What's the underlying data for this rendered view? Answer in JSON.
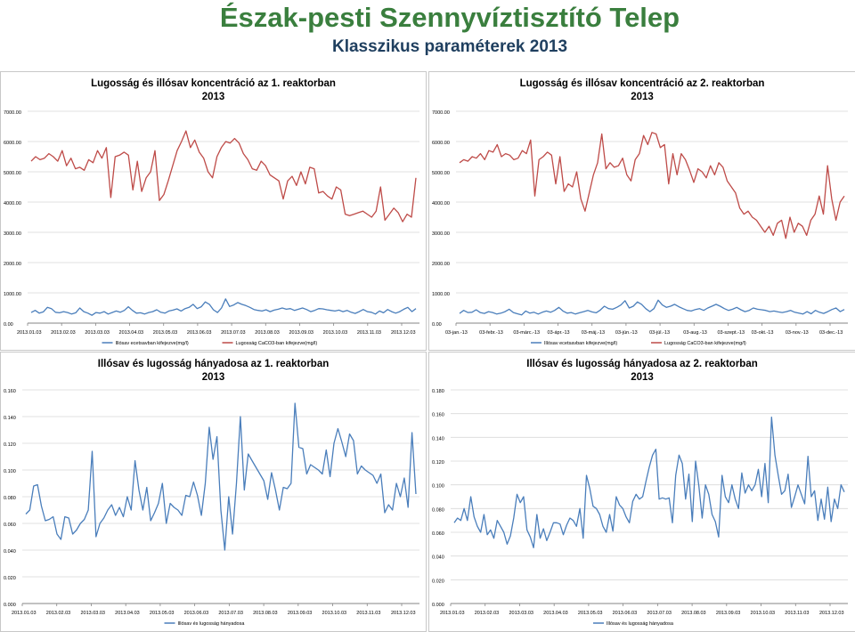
{
  "page": {
    "title": "Észak-pesti Szennyvíztisztító Telep",
    "subtitle": "Klasszikus paraméterek 2013"
  },
  "colors": {
    "acid": "#4a7ebb",
    "alk": "#be4b48",
    "ratio": "#4a7ebb",
    "grid": "#d9d9d9",
    "axis": "#868686"
  },
  "chart_data": [
    {
      "type": "line",
      "title": "Lugosság és illósav koncentráció az 1. reaktorban",
      "subtitle": "2013",
      "ylim": [
        0,
        7000
      ],
      "yticks": [
        "0.00",
        "1000.00",
        "2000.00",
        "3000.00",
        "4000.00",
        "5000.00",
        "6000.00",
        "7000.00"
      ],
      "xticks": [
        "2013.01.03",
        "2013.02.03",
        "2013.03.03",
        "2013.04.03",
        "2013.05.03",
        "2013.06.03",
        "2013.07.03",
        "2013.08.03",
        "2013.09.03",
        "2013.10.03",
        "2013.11.03",
        "2013.12.03"
      ],
      "x": {
        "start": 0,
        "end": 360
      },
      "grid": true,
      "legend_position": "bottom",
      "series": [
        {
          "name": "Illósav ecetsavban kifejezve(mg/l)",
          "color": "acid",
          "values": [
            350,
            420,
            330,
            370,
            520,
            480,
            360,
            340,
            380,
            350,
            300,
            340,
            500,
            380,
            330,
            260,
            350,
            330,
            380,
            300,
            350,
            400,
            360,
            420,
            540,
            420,
            330,
            340,
            300,
            350,
            380,
            440,
            360,
            330,
            400,
            430,
            470,
            400,
            480,
            520,
            620,
            480,
            540,
            700,
            620,
            440,
            350,
            500,
            800,
            550,
            600,
            680,
            620,
            580,
            520,
            450,
            420,
            400,
            440,
            380,
            430,
            460,
            500,
            460,
            480,
            420,
            460,
            500,
            450,
            380,
            420,
            480,
            470,
            440,
            420,
            400,
            430,
            380,
            420,
            360,
            320,
            380,
            450,
            380,
            360,
            300,
            400,
            340,
            450,
            380,
            330,
            380,
            460,
            520,
            380,
            480
          ]
        },
        {
          "name": "Lugosság CaCO3-ban kifejezve(mg/l)",
          "color": "alk",
          "values": [
            5350,
            5500,
            5400,
            5450,
            5600,
            5500,
            5350,
            5700,
            5200,
            5450,
            5100,
            5150,
            5050,
            5400,
            5300,
            5700,
            5450,
            5800,
            4150,
            5500,
            5550,
            5650,
            5550,
            4400,
            5350,
            4350,
            4800,
            5000,
            5700,
            4050,
            4250,
            4700,
            5200,
            5700,
            6000,
            6350,
            5800,
            6050,
            5650,
            5450,
            5000,
            4800,
            5500,
            5800,
            6000,
            5950,
            6100,
            5950,
            5600,
            5400,
            5100,
            5050,
            5350,
            5200,
            4900,
            4800,
            4700,
            4100,
            4700,
            4850,
            4550,
            5000,
            4600,
            5150,
            5100,
            4300,
            4350,
            4200,
            4100,
            4500,
            4400,
            3600,
            3550,
            3600,
            3650,
            3700,
            3600,
            3500,
            3700,
            4500,
            3400,
            3600,
            3800,
            3650,
            3350,
            3600,
            3500,
            4800
          ]
        }
      ]
    },
    {
      "type": "line",
      "title": "Lugosság és illósav koncentráció az 2. reaktorban",
      "subtitle": "2013",
      "ylim": [
        0,
        7000
      ],
      "yticks": [
        "0.00",
        "1000.00",
        "2000.00",
        "3000.00",
        "4000.00",
        "5000.00",
        "6000.00",
        "7000.00"
      ],
      "xticks": [
        "03-jan.-13",
        "03-febr.-13",
        "03-márc.-13",
        "03-ápr.-13",
        "03-máj.-13",
        "03-jún.-13",
        "03-júl.-13",
        "03-aug.-13",
        "03-szept.-13",
        "03-okt.-13",
        "03-nov.-13",
        "03-dec.-13"
      ],
      "grid": true,
      "legend_position": "bottom",
      "series": [
        {
          "name": "Illósav ecetsavban kifejezve(mg/l)",
          "color": "acid",
          "values": [
            320,
            420,
            350,
            360,
            440,
            350,
            320,
            380,
            350,
            300,
            330,
            380,
            460,
            350,
            310,
            270,
            400,
            330,
            360,
            300,
            360,
            400,
            360,
            420,
            520,
            400,
            330,
            350,
            300,
            340,
            380,
            420,
            370,
            340,
            430,
            560,
            480,
            460,
            520,
            600,
            740,
            500,
            560,
            700,
            620,
            480,
            380,
            480,
            760,
            600,
            520,
            560,
            620,
            540,
            480,
            420,
            400,
            450,
            480,
            420,
            500,
            560,
            620,
            560,
            480,
            420,
            460,
            520,
            440,
            380,
            420,
            500,
            460,
            440,
            420,
            380,
            400,
            370,
            350,
            380,
            420,
            360,
            330,
            300,
            380,
            310,
            420,
            360,
            320,
            380,
            450,
            500,
            380,
            450
          ]
        },
        {
          "name": "Lugosság CaCO3-ban kifejezve(mg/l)",
          "color": "alk",
          "values": [
            5300,
            5400,
            5350,
            5500,
            5450,
            5600,
            5400,
            5700,
            5650,
            5900,
            5500,
            5600,
            5550,
            5400,
            5450,
            5700,
            5600,
            6050,
            4200,
            5400,
            5500,
            5650,
            5550,
            4600,
            5500,
            4350,
            4600,
            4500,
            5000,
            4100,
            3700,
            4300,
            4900,
            5300,
            6250,
            5100,
            5300,
            5150,
            5200,
            5450,
            4900,
            4700,
            5400,
            5600,
            6200,
            5900,
            6300,
            6250,
            5800,
            5900,
            4600,
            5600,
            4900,
            5600,
            5400,
            5050,
            4650,
            5100,
            5000,
            4800,
            5200,
            4900,
            5300,
            5150,
            4700,
            4500,
            4300,
            3800,
            3600,
            3700,
            3500,
            3400,
            3200,
            3000,
            3200,
            2900,
            3300,
            3400,
            2800,
            3500,
            3000,
            3300,
            3200,
            2900,
            3400,
            3600,
            4200,
            3600,
            5200,
            4100,
            3400,
            4000,
            4200
          ]
        }
      ]
    },
    {
      "type": "line",
      "title": "Illósav és lugosság hányadosa az 1. reaktorban",
      "subtitle": "2013",
      "ylim": [
        0,
        0.16
      ],
      "yticks": [
        "0.000",
        "0.020",
        "0.040",
        "0.060",
        "0.080",
        "0.100",
        "0.120",
        "0.140",
        "0.160"
      ],
      "xticks": [
        "2013.01.03",
        "2013.02.03",
        "2013.03.03",
        "2013.04.03",
        "2013.05.03",
        "2013.06.03",
        "2013.07.03",
        "2013.08.03",
        "2013.09.03",
        "2013.10.03",
        "2013.11.03",
        "2013.12.03"
      ],
      "grid": true,
      "legend_position": "bottom",
      "series": [
        {
          "name": "Illósav és lugosság hányadosa",
          "color": "ratio",
          "values": [
            0.067,
            0.07,
            0.088,
            0.089,
            0.073,
            0.062,
            0.063,
            0.065,
            0.052,
            0.048,
            0.065,
            0.064,
            0.052,
            0.055,
            0.06,
            0.063,
            0.07,
            0.114,
            0.05,
            0.06,
            0.064,
            0.07,
            0.074,
            0.066,
            0.072,
            0.065,
            0.08,
            0.07,
            0.107,
            0.085,
            0.07,
            0.087,
            0.062,
            0.068,
            0.075,
            0.09,
            0.06,
            0.075,
            0.072,
            0.07,
            0.066,
            0.081,
            0.08,
            0.091,
            0.081,
            0.066,
            0.09,
            0.132,
            0.108,
            0.125,
            0.07,
            0.04,
            0.08,
            0.052,
            0.09,
            0.14,
            0.085,
            0.112,
            0.107,
            0.102,
            0.097,
            0.092,
            0.078,
            0.098,
            0.085,
            0.07,
            0.087,
            0.086,
            0.09,
            0.15,
            0.117,
            0.116,
            0.097,
            0.104,
            0.102,
            0.1,
            0.097,
            0.115,
            0.095,
            0.12,
            0.131,
            0.121,
            0.11,
            0.127,
            0.122,
            0.097,
            0.103,
            0.1,
            0.098,
            0.096,
            0.09,
            0.097,
            0.068,
            0.074,
            0.07,
            0.09,
            0.08,
            0.094,
            0.072,
            0.128,
            0.082
          ]
        }
      ]
    },
    {
      "type": "line",
      "title": "Illósav és lugosság hányadosa az 2. reaktorban",
      "subtitle": "2013",
      "ylim": [
        0,
        0.18
      ],
      "yticks": [
        "0.000",
        "0.020",
        "0.040",
        "0.060",
        "0.080",
        "0.100",
        "0.120",
        "0.140",
        "0.160",
        "0.180"
      ],
      "xticks": [
        "2013.01.03",
        "2013.02.03",
        "2013.03.03",
        "2013.04.03",
        "2013.05.03",
        "2013.06.03",
        "2013.07.03",
        "2013.08.03",
        "2013.09.03",
        "2013.10.03",
        "2013.11.03",
        "2013.12.03"
      ],
      "grid": true,
      "legend_position": "bottom",
      "series": [
        {
          "name": "Illósav és lugosság hányadosa",
          "color": "ratio",
          "values": [
            0.068,
            0.072,
            0.07,
            0.08,
            0.07,
            0.09,
            0.073,
            0.065,
            0.06,
            0.075,
            0.058,
            0.062,
            0.055,
            0.07,
            0.065,
            0.06,
            0.05,
            0.057,
            0.072,
            0.092,
            0.085,
            0.09,
            0.062,
            0.056,
            0.047,
            0.075,
            0.055,
            0.063,
            0.053,
            0.06,
            0.068,
            0.068,
            0.067,
            0.058,
            0.066,
            0.072,
            0.07,
            0.065,
            0.08,
            0.055,
            0.108,
            0.097,
            0.082,
            0.08,
            0.075,
            0.065,
            0.06,
            0.075,
            0.061,
            0.09,
            0.083,
            0.08,
            0.073,
            0.068,
            0.086,
            0.092,
            0.088,
            0.09,
            0.103,
            0.115,
            0.125,
            0.13,
            0.088,
            0.089,
            0.088,
            0.089,
            0.068,
            0.108,
            0.125,
            0.118,
            0.088,
            0.109,
            0.069,
            0.12,
            0.099,
            0.072,
            0.1,
            0.092,
            0.075,
            0.069,
            0.056,
            0.108,
            0.09,
            0.085,
            0.1,
            0.088,
            0.08,
            0.11,
            0.093,
            0.1,
            0.095,
            0.1,
            0.113,
            0.09,
            0.118,
            0.085,
            0.157,
            0.125,
            0.108,
            0.092,
            0.095,
            0.109,
            0.081,
            0.09,
            0.1,
            0.092,
            0.084,
            0.124,
            0.09,
            0.095,
            0.07,
            0.088,
            0.071,
            0.098,
            0.069,
            0.088,
            0.08,
            0.1,
            0.094
          ]
        }
      ]
    }
  ]
}
